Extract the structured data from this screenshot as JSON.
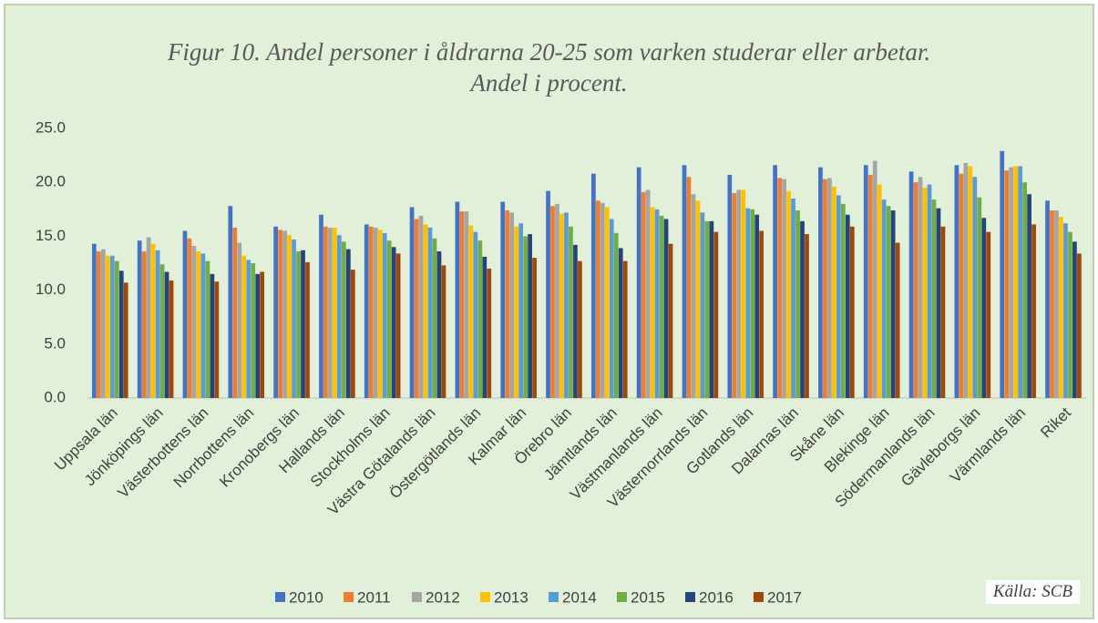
{
  "chart_data": {
    "type": "bar",
    "title": "Figur 10. Andel personer i åldrarna 20-25 som varken studerar eller arbetar. Andel i procent.",
    "annotation": "Källa: SCB",
    "categories": [
      "Uppsala län",
      "Jönköpings län",
      "Västerbottens län",
      "Norrbottens län",
      "Kronobergs län",
      "Hallands län",
      "Stockholms län",
      "Västra Götalands län",
      "Östergötlands län",
      "Kalmar län",
      "Örebro län",
      "Jämtlands län",
      "Västmanlands län",
      "Västernorrlands län",
      "Gotlands län",
      "Dalarnas län",
      "Skåne län",
      "Blekinge län",
      "Södermanlands län",
      "Gävleborgs län",
      "Värmlands län",
      "Riket"
    ],
    "series": [
      {
        "name": "2010",
        "color": "#4472c4",
        "values": [
          14.3,
          14.6,
          15.5,
          17.8,
          15.9,
          17.0,
          16.1,
          17.7,
          18.2,
          18.2,
          19.2,
          20.8,
          21.4,
          21.6,
          20.7,
          21.6,
          21.4,
          21.6,
          21.0,
          21.6,
          22.9,
          18.3
        ]
      },
      {
        "name": "2011",
        "color": "#ed7d31",
        "values": [
          13.6,
          13.6,
          14.8,
          15.8,
          15.6,
          15.9,
          15.9,
          16.6,
          17.3,
          17.4,
          17.8,
          18.3,
          19.1,
          20.5,
          19.0,
          20.4,
          20.3,
          20.7,
          20.0,
          20.8,
          21.1,
          17.4
        ]
      },
      {
        "name": "2012",
        "color": "#a5a5a5",
        "values": [
          13.8,
          14.9,
          14.1,
          14.4,
          15.5,
          15.8,
          15.8,
          16.9,
          17.3,
          17.2,
          18.0,
          18.1,
          19.3,
          18.9,
          19.3,
          20.3,
          20.4,
          22.0,
          20.5,
          21.8,
          21.4,
          17.4
        ]
      },
      {
        "name": "2013",
        "color": "#ffc000",
        "values": [
          13.2,
          14.3,
          13.6,
          13.2,
          15.1,
          15.8,
          15.6,
          16.1,
          16.0,
          15.9,
          17.1,
          17.7,
          17.7,
          18.3,
          19.3,
          19.2,
          19.6,
          19.8,
          19.5,
          21.5,
          21.5,
          16.8
        ]
      },
      {
        "name": "2014",
        "color": "#5b9bd5",
        "values": [
          13.2,
          13.7,
          13.4,
          12.8,
          14.7,
          15.1,
          15.3,
          15.8,
          15.4,
          16.2,
          17.2,
          16.6,
          17.5,
          17.2,
          17.6,
          18.5,
          18.8,
          18.4,
          19.8,
          20.5,
          21.5,
          16.2
        ]
      },
      {
        "name": "2015",
        "color": "#70ad47",
        "values": [
          12.7,
          12.4,
          12.7,
          12.5,
          13.6,
          14.5,
          14.6,
          14.8,
          14.6,
          15.0,
          15.9,
          15.3,
          16.9,
          16.4,
          17.5,
          17.4,
          18.0,
          17.8,
          18.4,
          18.6,
          20.0,
          15.4
        ]
      },
      {
        "name": "2016",
        "color": "#264478",
        "values": [
          11.8,
          11.7,
          11.5,
          11.5,
          13.7,
          13.8,
          14.0,
          13.6,
          13.1,
          15.2,
          14.2,
          13.9,
          16.6,
          16.4,
          17.0,
          16.4,
          17.0,
          17.4,
          17.6,
          16.7,
          18.9,
          14.5
        ]
      },
      {
        "name": "2017",
        "color": "#9e480e",
        "values": [
          10.7,
          10.9,
          10.8,
          11.7,
          12.6,
          11.9,
          13.4,
          12.3,
          12.0,
          13.0,
          12.7,
          12.7,
          14.3,
          15.4,
          15.5,
          15.2,
          15.9,
          14.4,
          15.9,
          15.4,
          16.1,
          13.4
        ]
      }
    ],
    "ylim": [
      0,
      25
    ],
    "yticks": [
      {
        "value": 0,
        "label": "0.0"
      },
      {
        "value": 5,
        "label": "5.0"
      },
      {
        "value": 10,
        "label": "10.0"
      },
      {
        "value": 15,
        "label": "15.0"
      },
      {
        "value": 20,
        "label": "20.0"
      },
      {
        "value": 25,
        "label": "25.0"
      }
    ],
    "grid": false
  }
}
